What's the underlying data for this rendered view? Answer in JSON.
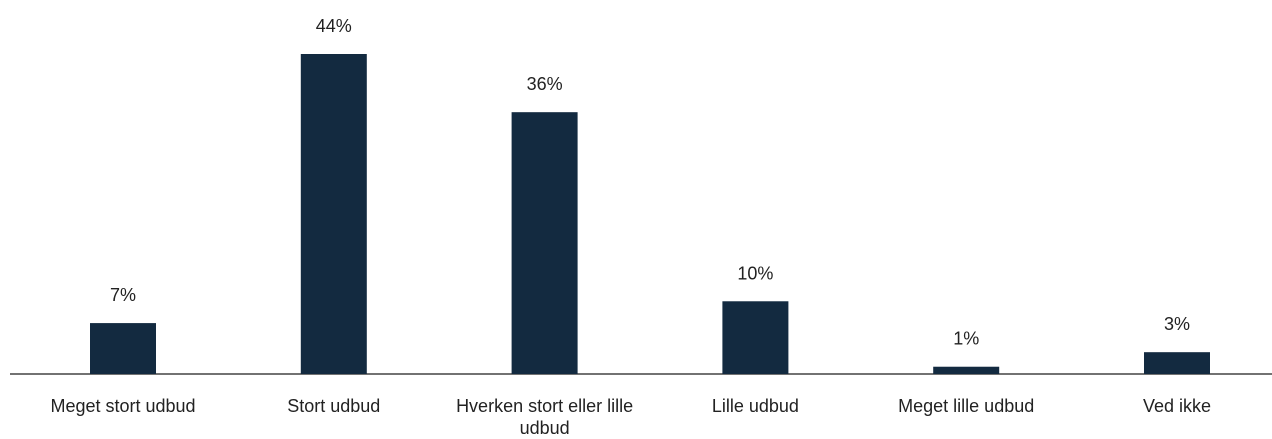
{
  "chart_data": {
    "type": "bar",
    "categories": [
      "Meget stort udbud",
      "Stort udbud",
      "Hverken stort eller lille udbud",
      "Lille udbud",
      "Meget lille udbud",
      "Ved ikke"
    ],
    "values": [
      7,
      44,
      36,
      10,
      1,
      3
    ],
    "value_labels": [
      "7%",
      "44%",
      "36%",
      "10%",
      "1%",
      "3%"
    ],
    "color": "#132a40"
  }
}
